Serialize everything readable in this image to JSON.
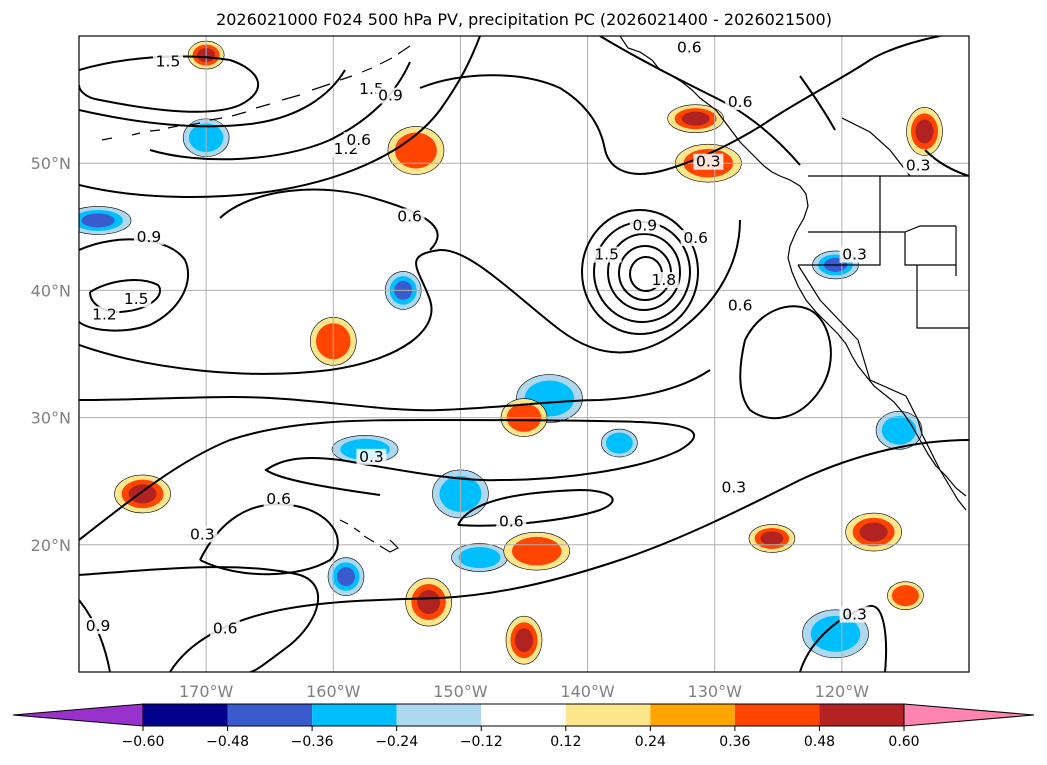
{
  "chart_data": {
    "type": "contour",
    "title": "2026021000 F024 500 hPa PV, precipitation PC (2026021400 - 2026021500)",
    "map": {
      "lon_range": [
        -180,
        -110
      ],
      "lat_range": [
        10,
        60
      ],
      "lon_ticks": [
        {
          "value": -170,
          "label": "170°W"
        },
        {
          "value": -160,
          "label": "160°W"
        },
        {
          "value": -150,
          "label": "150°W"
        },
        {
          "value": -140,
          "label": "140°W"
        },
        {
          "value": -130,
          "label": "130°W"
        },
        {
          "value": -120,
          "label": "120°W"
        }
      ],
      "lat_ticks": [
        {
          "value": 20,
          "label": "20°N"
        },
        {
          "value": 30,
          "label": "30°N"
        },
        {
          "value": 40,
          "label": "40°N"
        },
        {
          "value": 50,
          "label": "50°N"
        }
      ],
      "grid": true
    },
    "colorbar": {
      "levels": [
        -0.6,
        -0.48,
        -0.36,
        -0.24,
        -0.12,
        0.12,
        0.24,
        0.36,
        0.48,
        0.6
      ],
      "tick_labels": [
        "−0.60",
        "−0.48",
        "−0.36",
        "−0.24",
        "−0.12",
        "0.12",
        "0.24",
        "0.36",
        "0.48",
        "0.60"
      ],
      "colors": [
        "#9932cc",
        "#00008b",
        "#3a5bcd",
        "#00bfff",
        "#add8f0",
        "#ffffff",
        "#fce68c",
        "#ffa500",
        "#ff4500",
        "#b22222",
        "#ff85b0"
      ],
      "extend": "both"
    },
    "pv_contours": {
      "levels": [
        0.3,
        0.6,
        0.9,
        1.2,
        1.5,
        1.8
      ],
      "labels": [
        {
          "text": "1.5",
          "lon": -173,
          "lat": 57.7
        },
        {
          "text": "1.2",
          "lon": -159,
          "lat": 50.8
        },
        {
          "text": "1.5",
          "lon": -157,
          "lat": 55.5
        },
        {
          "text": "0.9",
          "lon": -155.5,
          "lat": 55
        },
        {
          "text": "0.6",
          "lon": -158,
          "lat": 51.5
        },
        {
          "text": "0.6",
          "lon": -154,
          "lat": 45.5
        },
        {
          "text": "0.6",
          "lon": -132,
          "lat": 58.8
        },
        {
          "text": "0.6",
          "lon": -128,
          "lat": 54.5
        },
        {
          "text": "0.3",
          "lon": -130.5,
          "lat": 49.8
        },
        {
          "text": "0.9",
          "lon": -174.5,
          "lat": 43.9
        },
        {
          "text": "1.5",
          "lon": -175.5,
          "lat": 39
        },
        {
          "text": "1.2",
          "lon": -178,
          "lat": 37.8
        },
        {
          "text": "0.9",
          "lon": -135.5,
          "lat": 44.8
        },
        {
          "text": "0.6",
          "lon": -131.5,
          "lat": 43.8
        },
        {
          "text": "1.5",
          "lon": -138.5,
          "lat": 42.5
        },
        {
          "text": "1.8",
          "lon": -134,
          "lat": 40.5
        },
        {
          "text": "0.6",
          "lon": -128,
          "lat": 38.5
        },
        {
          "text": "0.3",
          "lon": -119,
          "lat": 42.5
        },
        {
          "text": "0.3",
          "lon": -114,
          "lat": 49.5
        },
        {
          "text": "0.3",
          "lon": -157,
          "lat": 26.6
        },
        {
          "text": "0.6",
          "lon": -164.3,
          "lat": 23.3
        },
        {
          "text": "0.3",
          "lon": -170.3,
          "lat": 20.5
        },
        {
          "text": "0.6",
          "lon": -146,
          "lat": 21.5
        },
        {
          "text": "0.3",
          "lon": -128.5,
          "lat": 24.2
        },
        {
          "text": "0.3",
          "lon": -119,
          "lat": 14.2
        },
        {
          "text": "0.6",
          "lon": -168.5,
          "lat": 13.1
        },
        {
          "text": "0.9",
          "lon": -178.5,
          "lat": 13.3
        }
      ]
    },
    "precip_regions": [
      {
        "category": "positive",
        "value": 0.48,
        "lon": -170,
        "lat": 58.5
      },
      {
        "category": "negative",
        "value": -0.36,
        "lon": -170,
        "lat": 52
      },
      {
        "category": "positive",
        "value": 0.36,
        "lon": -153.5,
        "lat": 51
      },
      {
        "category": "negative",
        "value": -0.48,
        "lon": -178.5,
        "lat": 45.5
      },
      {
        "category": "negative",
        "value": -0.48,
        "lon": -154.5,
        "lat": 40
      },
      {
        "category": "positive",
        "value": 0.36,
        "lon": -160,
        "lat": 36
      },
      {
        "category": "positive",
        "value": 0.48,
        "lon": -131.5,
        "lat": 53.5
      },
      {
        "category": "positive",
        "value": 0.36,
        "lon": -130.5,
        "lat": 50
      },
      {
        "category": "positive",
        "value": 0.48,
        "lon": -113.5,
        "lat": 52.5
      },
      {
        "category": "negative",
        "value": -0.48,
        "lon": -120.5,
        "lat": 42
      },
      {
        "category": "positive",
        "value": 0.48,
        "lon": -175,
        "lat": 24
      },
      {
        "category": "negative",
        "value": -0.36,
        "lon": -143,
        "lat": 31.5
      },
      {
        "category": "negative",
        "value": -0.36,
        "lon": -137.5,
        "lat": 28
      },
      {
        "category": "positive",
        "value": 0.36,
        "lon": -145,
        "lat": 30
      },
      {
        "category": "negative",
        "value": -0.36,
        "lon": -150,
        "lat": 24
      },
      {
        "category": "negative",
        "value": -0.36,
        "lon": -157.5,
        "lat": 27.5
      },
      {
        "category": "negative",
        "value": -0.48,
        "lon": -159,
        "lat": 17.5
      },
      {
        "category": "positive",
        "value": 0.48,
        "lon": -152.5,
        "lat": 15.5
      },
      {
        "category": "negative",
        "value": -0.36,
        "lon": -148.5,
        "lat": 19
      },
      {
        "category": "positive",
        "value": 0.36,
        "lon": -144,
        "lat": 19.5
      },
      {
        "category": "positive",
        "value": 0.48,
        "lon": -145,
        "lat": 12.5
      },
      {
        "category": "positive",
        "value": 0.48,
        "lon": -125.5,
        "lat": 20.5
      },
      {
        "category": "positive",
        "value": 0.48,
        "lon": -117.5,
        "lat": 21
      },
      {
        "category": "negative",
        "value": -0.36,
        "lon": -120.5,
        "lat": 13
      },
      {
        "category": "positive",
        "value": 0.36,
        "lon": -115,
        "lat": 16
      },
      {
        "category": "negative",
        "value": -0.36,
        "lon": -115.5,
        "lat": 29
      }
    ]
  }
}
